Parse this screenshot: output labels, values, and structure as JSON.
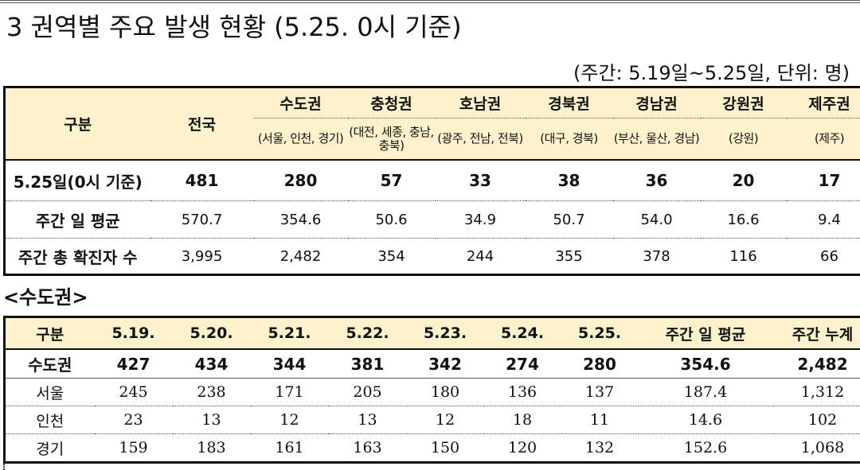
{
  "section_title": "3 권역별 주요 발생 현황 (5.25. 0시 기준)",
  "unit_note": "(주간: 5.19일~5.25일, 단위: 명)",
  "regional_table": {
    "header_label": "구분",
    "national_label": "전국",
    "regions": [
      {
        "name": "수도권",
        "sub": "(서울, 인천, 경기)"
      },
      {
        "name": "충청권",
        "sub": "(대전, 세종, 충남, 충북)"
      },
      {
        "name": "호남권",
        "sub": "(광주, 전남, 전북)"
      },
      {
        "name": "경북권",
        "sub": "(대구, 경북)"
      },
      {
        "name": "경남권",
        "sub": "(부산, 울산, 경남)"
      },
      {
        "name": "강원권",
        "sub": "(강원)"
      },
      {
        "name": "제주권",
        "sub": "(제주)"
      }
    ],
    "rows": [
      {
        "label": "5.25일(0시 기준)",
        "values": [
          "481",
          "280",
          "57",
          "33",
          "38",
          "36",
          "20",
          "17"
        ]
      },
      {
        "label": "주간 일 평균",
        "values": [
          "570.7",
          "354.6",
          "50.6",
          "34.9",
          "50.7",
          "54.0",
          "16.6",
          "9.4"
        ]
      },
      {
        "label": "주간 총 확진자 수",
        "values": [
          "3,995",
          "2,482",
          "354",
          "244",
          "355",
          "378",
          "116",
          "66"
        ]
      }
    ]
  },
  "capital_title": "<수도권>",
  "capital_table": {
    "headers": [
      "구분",
      "5.19.",
      "5.20.",
      "5.21.",
      "5.22.",
      "5.23.",
      "5.24.",
      "5.25.",
      "주간 일 평균",
      "주간 누계"
    ],
    "rows": [
      {
        "label": "수도권",
        "values": [
          "427",
          "434",
          "344",
          "381",
          "342",
          "274",
          "280",
          "354.6",
          "2,482"
        ]
      },
      {
        "label": "서울",
        "values": [
          "245",
          "238",
          "171",
          "205",
          "180",
          "136",
          "137",
          "187.4",
          "1,312"
        ]
      },
      {
        "label": "인천",
        "values": [
          "23",
          "13",
          "12",
          "13",
          "12",
          "18",
          "11",
          "14.6",
          "102"
        ]
      },
      {
        "label": "경기",
        "values": [
          "159",
          "183",
          "161",
          "163",
          "150",
          "120",
          "132",
          "152.6",
          "1,068"
        ]
      }
    ]
  }
}
